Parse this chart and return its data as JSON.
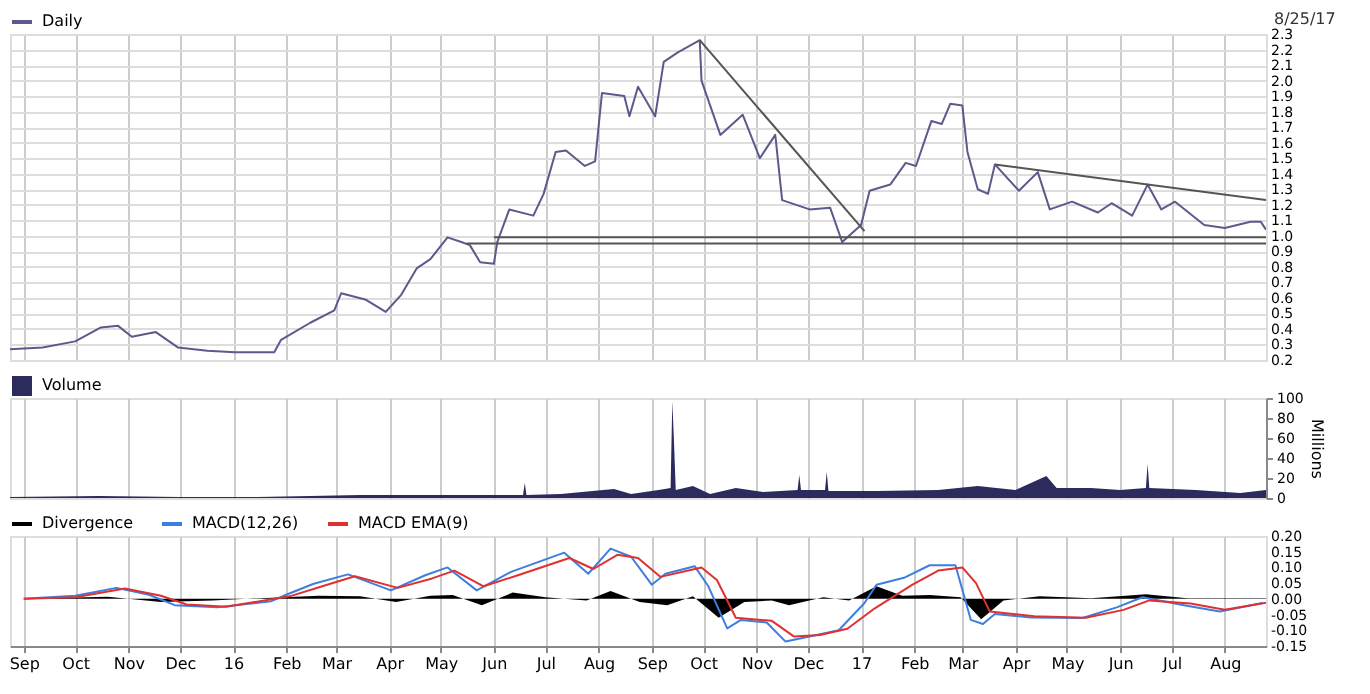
{
  "chart_data": [
    {
      "type": "line",
      "annotations": [
        "8/25/17"
      ],
      "legend": "top left",
      "grid": true,
      "tick_labels": "y",
      "xlim": [
        "2015-08-24",
        "2017-08-25"
      ],
      "xticks": [
        {
          "value": "2015-09-01",
          "label": null
        },
        {
          "value": "2015-10-01",
          "label": null
        },
        {
          "value": "2015-11-01",
          "label": null
        },
        {
          "value": "2015-12-01",
          "label": null
        },
        {
          "value": "2016-01-01",
          "label": null
        },
        {
          "value": "2016-02-01",
          "label": null
        },
        {
          "value": "2016-03-01",
          "label": null
        },
        {
          "value": "2016-04-01",
          "label": null
        },
        {
          "value": "2016-05-01",
          "label": null
        },
        {
          "value": "2016-06-01",
          "label": null
        },
        {
          "value": "2016-07-01",
          "label": null
        },
        {
          "value": "2016-08-01",
          "label": null
        },
        {
          "value": "2016-09-01",
          "label": null
        },
        {
          "value": "2016-10-01",
          "label": null
        },
        {
          "value": "2016-11-01",
          "label": null
        },
        {
          "value": "2016-12-01",
          "label": null
        },
        {
          "value": "2017-01-01",
          "label": null
        },
        {
          "value": "2017-02-01",
          "label": null
        },
        {
          "value": "2017-03-01",
          "label": null
        },
        {
          "value": "2017-04-01",
          "label": null
        },
        {
          "value": "2017-05-01",
          "label": null
        },
        {
          "value": "2017-06-01",
          "label": null
        },
        {
          "value": "2017-07-01",
          "label": null
        },
        {
          "value": "2017-08-01",
          "label": null
        }
      ],
      "ylim": [
        0.2,
        2.3
      ],
      "yticks": [
        0.2,
        0.3,
        0.4,
        0.5,
        0.6,
        0.7,
        0.8,
        0.9,
        {
          "value": 1,
          "label": "1.0"
        },
        1.1,
        1.2,
        1.3,
        1.4,
        1.5,
        1.6,
        1.7,
        1.8,
        1.9,
        {
          "value": 2,
          "label": "2.0"
        },
        2.1,
        2.2,
        2.3
      ],
      "series": [
        {
          "name": "Daily",
          "color": "#5a5a8c",
          "x": [
            "2015-08-24",
            "2015-09-12",
            "2015-10-01",
            "2015-10-16",
            "2015-10-26",
            "2015-11-03",
            "2015-11-17",
            "2015-11-30",
            "2015-12-17",
            "2016-01-02",
            "2016-01-25",
            "2016-01-29",
            "2016-02-15",
            "2016-02-29",
            "2016-03-04",
            "2016-03-18",
            "2016-03-30",
            "2016-04-08",
            "2016-04-17",
            "2016-04-25",
            "2016-05-05",
            "2016-05-13",
            "2016-05-18",
            "2016-05-24",
            "2016-06-01",
            "2016-06-03",
            "2016-06-10",
            "2016-06-24",
            "2016-06-30",
            "2016-07-07",
            "2016-07-13",
            "2016-07-24",
            "2016-07-30",
            "2016-08-03",
            "2016-08-16",
            "2016-08-19",
            "2016-08-24",
            "2016-09-03",
            "2016-09-08",
            "2016-09-16",
            "2016-09-29",
            "2016-09-30",
            "2016-10-11",
            "2016-10-24",
            "2016-11-03",
            "2016-11-12",
            "2016-11-16",
            "2016-12-02",
            "2016-12-14",
            "2016-12-21",
            "2017-01-01",
            "2017-01-06",
            "2017-01-18",
            "2017-01-27",
            "2017-02-02",
            "2017-02-11",
            "2017-02-17",
            "2017-02-22",
            "2017-03-01",
            "2017-03-04",
            "2017-03-10",
            "2017-03-16",
            "2017-03-20",
            "2017-04-03",
            "2017-04-14",
            "2017-04-21",
            "2017-05-04",
            "2017-05-19",
            "2017-05-27",
            "2017-06-08",
            "2017-06-17",
            "2017-06-25",
            "2017-07-03",
            "2017-07-20",
            "2017-08-01",
            "2017-08-16",
            "2017-08-22",
            "2017-08-25"
          ],
          "values": [
            0.27,
            0.28,
            0.32,
            0.41,
            0.42,
            0.35,
            0.38,
            0.28,
            0.26,
            0.25,
            0.25,
            0.33,
            0.44,
            0.52,
            0.63,
            0.59,
            0.51,
            0.62,
            0.79,
            0.85,
            0.99,
            0.96,
            0.94,
            0.83,
            0.82,
            0.96,
            1.17,
            1.13,
            1.27,
            1.54,
            1.55,
            1.45,
            1.48,
            1.92,
            1.9,
            1.77,
            1.96,
            1.77,
            2.12,
            2.18,
            2.26,
            2.0,
            1.65,
            1.78,
            1.5,
            1.65,
            1.23,
            1.17,
            1.18,
            0.96,
            1.07,
            1.29,
            1.33,
            1.47,
            1.45,
            1.74,
            1.72,
            1.85,
            1.84,
            1.54,
            1.3,
            1.27,
            1.46,
            1.29,
            1.41,
            1.17,
            1.22,
            1.15,
            1.21,
            1.13,
            1.33,
            1.17,
            1.22,
            1.07,
            1.05,
            1.09,
            1.09,
            1.04
          ]
        },
        {
          "color": "#555555",
          "x": [
            "2016-09-29",
            "2017-01-03"
          ],
          "values": [
            2.26,
            1.03
          ]
        },
        {
          "color": "#555555",
          "x": [
            "2017-03-20",
            "2017-08-25"
          ],
          "values": [
            1.46,
            1.23
          ]
        },
        {
          "color": "#555555",
          "x": [
            "2016-06-01",
            "2017-08-25"
          ],
          "values": [
            0.99,
            0.99
          ]
        },
        {
          "color": "#555555",
          "x": [
            "2016-05-16",
            "2017-08-25"
          ],
          "values": [
            0.95,
            0.95
          ]
        }
      ]
    },
    {
      "type": "area",
      "legend": "top left",
      "grid": "x",
      "tick_labels": "y",
      "ylabel": "Millions",
      "xlim": [
        "2015-08-24",
        "2017-08-25"
      ],
      "xticks": [
        {
          "value": "2015-09-01",
          "label": null
        },
        {
          "value": "2015-10-01",
          "label": null
        },
        {
          "value": "2015-11-01",
          "label": null
        },
        {
          "value": "2015-12-01",
          "label": null
        },
        {
          "value": "2016-01-01",
          "label": null
        },
        {
          "value": "2016-02-01",
          "label": null
        },
        {
          "value": "2016-03-01",
          "label": null
        },
        {
          "value": "2016-04-01",
          "label": null
        },
        {
          "value": "2016-05-01",
          "label": null
        },
        {
          "value": "2016-06-01",
          "label": null
        },
        {
          "value": "2016-07-01",
          "label": null
        },
        {
          "value": "2016-08-01",
          "label": null
        },
        {
          "value": "2016-09-01",
          "label": null
        },
        {
          "value": "2016-10-01",
          "label": null
        },
        {
          "value": "2016-11-01",
          "label": null
        },
        {
          "value": "2016-12-01",
          "label": null
        },
        {
          "value": "2017-01-01",
          "label": null
        },
        {
          "value": "2017-02-01",
          "label": null
        },
        {
          "value": "2017-03-01",
          "label": null
        },
        {
          "value": "2017-04-01",
          "label": null
        },
        {
          "value": "2017-05-01",
          "label": null
        },
        {
          "value": "2017-06-01",
          "label": null
        },
        {
          "value": "2017-07-01",
          "label": null
        },
        {
          "value": "2017-08-01",
          "label": null
        }
      ],
      "ylim": [
        0,
        100
      ],
      "yticks": [
        0,
        20,
        40,
        60,
        80,
        100
      ],
      "series": [
        {
          "name": "Volume",
          "color": "#2b2b5e",
          "x": [
            "2015-08-24",
            "2015-10-15",
            "2015-12-01",
            "2016-01-15",
            "2016-02-15",
            "2016-03-15",
            "2016-04-15",
            "2016-05-15",
            "2016-06-18",
            "2016-06-19",
            "2016-06-20",
            "2016-07-10",
            "2016-08-10",
            "2016-08-20",
            "2016-09-05",
            "2016-09-12",
            "2016-09-13",
            "2016-09-14",
            "2016-09-15",
            "2016-09-25",
            "2016-10-05",
            "2016-10-20",
            "2016-11-05",
            "2016-11-25",
            "2016-11-26",
            "2016-11-27",
            "2016-12-11",
            "2016-12-12",
            "2016-12-13",
            "2017-01-10",
            "2017-02-15",
            "2017-03-10",
            "2017-04-01",
            "2017-04-19",
            "2017-04-25",
            "2017-05-15",
            "2017-06-01",
            "2017-06-16",
            "2017-06-17",
            "2017-06-18",
            "2017-07-15",
            "2017-08-10",
            "2017-08-25"
          ],
          "values": [
            1,
            2,
            1,
            1,
            2,
            3,
            3,
            3,
            3,
            15,
            3,
            4,
            9,
            4,
            8,
            10,
            97,
            55,
            8,
            12,
            4,
            10,
            6,
            8,
            23,
            8,
            8,
            26,
            7,
            7,
            8,
            12,
            8,
            22,
            10,
            10,
            8,
            10,
            34,
            10,
            8,
            5,
            8
          ]
        }
      ]
    },
    {
      "type": "line",
      "legend": "top left",
      "grid": "x",
      "xlim": [
        "2015-08-24",
        "2017-08-25"
      ],
      "xticks": [
        {
          "value": "2015-09-01",
          "label": "Sep"
        },
        {
          "value": "2015-10-01",
          "label": "Oct"
        },
        {
          "value": "2015-11-01",
          "label": "Nov"
        },
        {
          "value": "2015-12-01",
          "label": "Dec"
        },
        {
          "value": "2016-01-01",
          "label": "16"
        },
        {
          "value": "2016-02-01",
          "label": "Feb"
        },
        {
          "value": "2016-03-01",
          "label": "Mar"
        },
        {
          "value": "2016-04-01",
          "label": "Apr"
        },
        {
          "value": "2016-05-01",
          "label": "May"
        },
        {
          "value": "2016-06-01",
          "label": "Jun"
        },
        {
          "value": "2016-07-01",
          "label": "Jul"
        },
        {
          "value": "2016-08-01",
          "label": "Aug"
        },
        {
          "value": "2016-09-01",
          "label": "Sep"
        },
        {
          "value": "2016-10-01",
          "label": "Oct"
        },
        {
          "value": "2016-11-01",
          "label": "Nov"
        },
        {
          "value": "2016-12-01",
          "label": "Dec"
        },
        {
          "value": "2017-01-01",
          "label": "17"
        },
        {
          "value": "2017-02-01",
          "label": "Feb"
        },
        {
          "value": "2017-03-01",
          "label": "Mar"
        },
        {
          "value": "2017-04-01",
          "label": "Apr"
        },
        {
          "value": "2017-05-01",
          "label": "May"
        },
        {
          "value": "2017-06-01",
          "label": "Jun"
        },
        {
          "value": "2017-07-01",
          "label": "Jul"
        },
        {
          "value": "2017-08-01",
          "label": "Aug"
        }
      ],
      "ylim": [
        -0.15,
        0.2
      ],
      "yticks": [
        -0.15,
        {
          "value": -0.1,
          "label": "-0.10"
        },
        -0.05,
        {
          "value": 0,
          "label": "0.00"
        },
        0.05,
        {
          "value": 0.1,
          "label": "0.10"
        },
        0.15,
        {
          "value": 0.2,
          "label": "0.20"
        }
      ],
      "series": [
        {
          "name": "Divergence",
          "type": "area",
          "color": "#000000",
          "x": [
            "2015-09-01",
            "2015-10-20",
            "2015-11-20",
            "2015-12-20",
            "2016-01-20",
            "2016-02-20",
            "2016-03-15",
            "2016-04-05",
            "2016-04-25",
            "2016-05-08",
            "2016-05-25",
            "2016-06-12",
            "2016-07-01",
            "2016-07-25",
            "2016-08-08",
            "2016-08-25",
            "2016-09-10",
            "2016-09-25",
            "2016-10-10",
            "2016-10-25",
            "2016-11-10",
            "2016-11-20",
            "2016-12-10",
            "2016-12-25",
            "2017-01-10",
            "2017-01-25",
            "2017-02-10",
            "2017-02-28",
            "2017-03-12",
            "2017-03-25",
            "2017-04-15",
            "2017-05-15",
            "2017-06-16",
            "2017-07-10",
            "2017-08-01",
            "2017-08-25"
          ],
          "values": [
            0,
            0.007,
            -0.01,
            -0.005,
            0.003,
            0.01,
            0.008,
            -0.01,
            0.01,
            0.012,
            -0.02,
            0.02,
            0.005,
            -0.005,
            0.025,
            -0.01,
            -0.02,
            0.008,
            -0.06,
            -0.01,
            -0.005,
            -0.02,
            0.005,
            -0.005,
            0.04,
            0.01,
            0.012,
            0.005,
            -0.065,
            -0.005,
            0.008,
            0.002,
            0.015,
            0.002,
            0.002,
            0.002
          ]
        },
        {
          "name": "MACD(12,26)",
          "color": "#3d7fe0",
          "x": [
            "2015-09-01",
            "2015-10-01",
            "2015-10-25",
            "2015-11-13",
            "2015-11-28",
            "2015-12-23",
            "2016-01-23",
            "2016-02-01",
            "2016-02-17",
            "2016-03-08",
            "2016-04-02",
            "2016-04-22",
            "2016-05-05",
            "2016-05-22",
            "2016-06-11",
            "2016-07-12",
            "2016-07-26",
            "2016-08-08",
            "2016-08-20",
            "2016-09-01",
            "2016-09-09",
            "2016-09-26",
            "2016-10-04",
            "2016-10-15",
            "2016-10-23",
            "2016-11-07",
            "2016-11-18",
            "2016-12-02",
            "2016-12-19",
            "2017-01-03",
            "2017-01-10",
            "2017-01-26",
            "2017-02-10",
            "2017-02-25",
            "2017-03-06",
            "2017-03-13",
            "2017-03-20",
            "2017-04-10",
            "2017-05-10",
            "2017-05-30",
            "2017-06-14",
            "2017-07-09",
            "2017-07-29",
            "2017-08-23"
          ],
          "values": [
            0,
            0.01,
            0.035,
            0.013,
            -0.02,
            -0.027,
            -0.008,
            0.013,
            0.048,
            0.078,
            0.027,
            0.075,
            0.1,
            0.027,
            0.086,
            0.147,
            0.08,
            0.16,
            0.134,
            0.045,
            0.08,
            0.104,
            0.04,
            -0.094,
            -0.067,
            -0.075,
            -0.136,
            -0.12,
            -0.1,
            -0.013,
            0.045,
            0.067,
            0.107,
            0.107,
            -0.067,
            -0.08,
            -0.048,
            -0.059,
            -0.061,
            -0.027,
            0.005,
            -0.021,
            -0.04,
            -0.013
          ]
        },
        {
          "name": "MACD EMA(9)",
          "color": "#e03030",
          "x": [
            "2015-09-01",
            "2015-10-01",
            "2015-10-30",
            "2015-11-20",
            "2015-12-05",
            "2015-12-28",
            "2016-02-03",
            "2016-02-22",
            "2016-03-12",
            "2016-04-06",
            "2016-04-26",
            "2016-05-09",
            "2016-05-26",
            "2016-06-15",
            "2016-07-15",
            "2016-07-29",
            "2016-08-12",
            "2016-08-24",
            "2016-09-06",
            "2016-09-30",
            "2016-10-09",
            "2016-10-20",
            "2016-11-10",
            "2016-11-23",
            "2016-12-08",
            "2016-12-24",
            "2017-01-09",
            "2017-01-31",
            "2017-02-15",
            "2017-03-01",
            "2017-03-09",
            "2017-03-17",
            "2017-04-12",
            "2017-05-12",
            "2017-06-03",
            "2017-06-18",
            "2017-07-12",
            "2017-08-01",
            "2017-08-25"
          ],
          "values": [
            0,
            0.005,
            0.033,
            0.01,
            -0.018,
            -0.025,
            0.008,
            0.04,
            0.072,
            0.035,
            0.065,
            0.09,
            0.04,
            0.075,
            0.13,
            0.095,
            0.14,
            0.13,
            0.07,
            0.1,
            0.06,
            -0.06,
            -0.07,
            -0.12,
            -0.115,
            -0.095,
            -0.03,
            0.045,
            0.09,
            0.1,
            0.05,
            -0.04,
            -0.055,
            -0.06,
            -0.035,
            -0.005,
            -0.015,
            -0.035,
            -0.012
          ]
        }
      ]
    }
  ]
}
